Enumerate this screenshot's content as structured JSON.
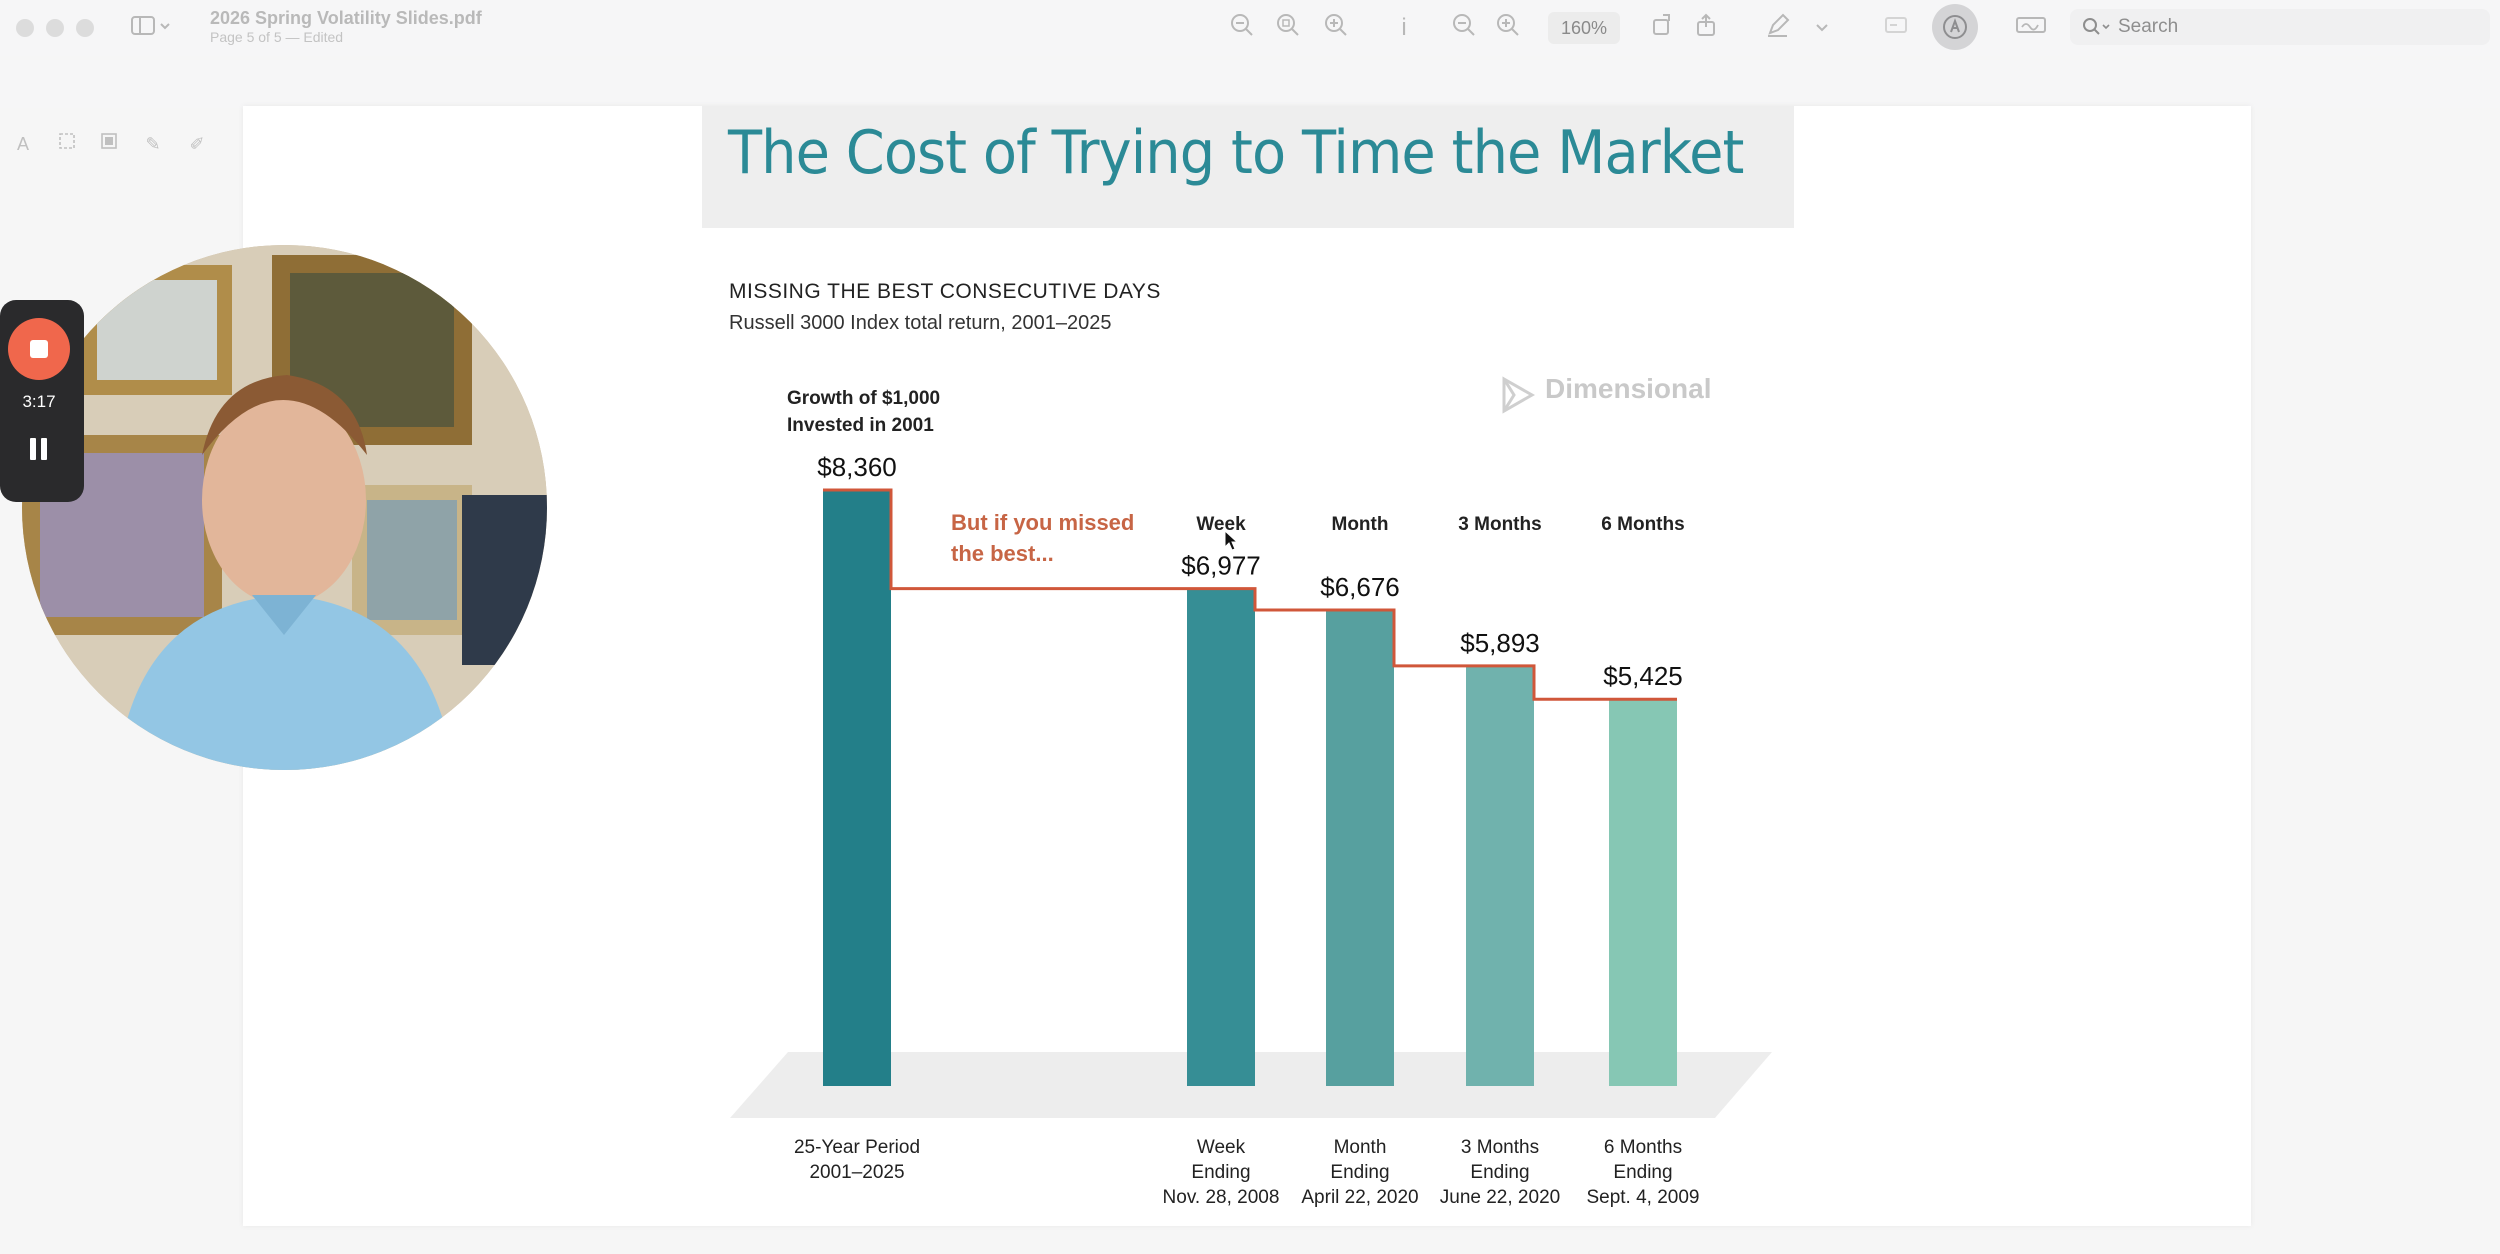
{
  "window": {
    "title": "2026 Spring Volatility Slides.pdf",
    "subtitle": "Page 5 of 5 — Edited"
  },
  "toolbar": {
    "zoom_level": "160%",
    "search_placeholder": "Search"
  },
  "markup": {
    "font_label": "Aa",
    "active_color": "#e3432f"
  },
  "slide": {
    "title": "The Cost of Trying to Time the Market",
    "section_heading": "MISSING THE BEST CONSECUTIVE DAYS",
    "section_subheading": "Russell 3000 Index total return, 2001–2025",
    "logo_text": "Dimensional"
  },
  "recording": {
    "elapsed": "3:17"
  },
  "chart_data": {
    "type": "bar",
    "title": "",
    "growth_label_line1": "Growth of $1,000",
    "growth_label_line2": "Invested in 2001",
    "annotation_line1": "But if you missed",
    "annotation_line2": "the best...",
    "ylim": [
      0,
      8360
    ],
    "series": [
      {
        "values": [
          8360,
          6977,
          6676,
          5893,
          5425
        ]
      }
    ],
    "bars": [
      {
        "value": 8360,
        "value_label": "$8,360",
        "header": "",
        "cat_line1": "25-Year Period",
        "cat_line2": "2001–2025",
        "cat_line3": "",
        "color": "#237f89"
      },
      {
        "value": 6977,
        "value_label": "$6,977",
        "header": "Week",
        "cat_line1": "Week",
        "cat_line2": "Ending",
        "cat_line3": "Nov. 28, 2008",
        "color": "#368e95"
      },
      {
        "value": 6676,
        "value_label": "$6,676",
        "header": "Month",
        "cat_line1": "Month",
        "cat_line2": "Ending",
        "cat_line3": "April 22, 2020",
        "color": "#57a09f"
      },
      {
        "value": 5893,
        "value_label": "$5,893",
        "header": "3 Months",
        "cat_line1": "3 Months",
        "cat_line2": "Ending",
        "cat_line3": "June 22, 2020",
        "color": "#70b2ad"
      },
      {
        "value": 5425,
        "value_label": "$5,425",
        "header": "6 Months",
        "cat_line1": "6 Months",
        "cat_line2": "Ending",
        "cat_line3": "Sept. 4, 2009",
        "color": "#86c7b4"
      }
    ],
    "step_line_color": "#d0573a",
    "annotation_color": "#c76545"
  }
}
